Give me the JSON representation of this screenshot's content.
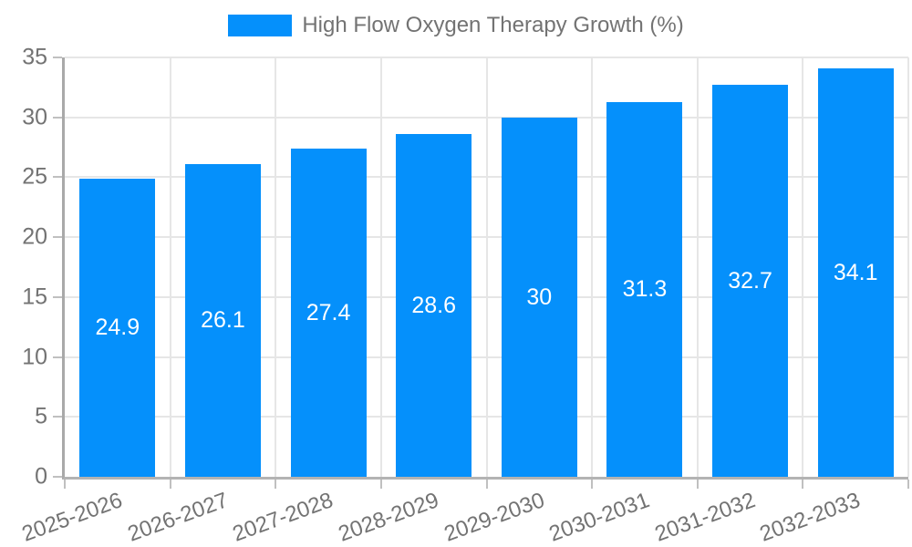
{
  "legend": {
    "label": "High Flow Oxygen Therapy Growth (%)"
  },
  "chart_data": {
    "type": "bar",
    "title": "High Flow Oxygen Therapy Growth (%)",
    "categories": [
      "2025-2026",
      "2026-2027",
      "2027-2028",
      "2028-2029",
      "2029-2030",
      "2030-2031",
      "2031-2032",
      "2032-2033"
    ],
    "values": [
      24.9,
      26.1,
      27.4,
      28.6,
      30,
      31.3,
      32.7,
      34.1
    ],
    "value_labels": [
      "24.9",
      "26.1",
      "27.4",
      "28.6",
      "30",
      "31.3",
      "32.7",
      "34.1"
    ],
    "xlabel": "",
    "ylabel": "",
    "ylim": [
      0,
      35
    ],
    "yticks": [
      0,
      5,
      10,
      15,
      20,
      25,
      30,
      35
    ],
    "grid": true,
    "legend_position": "top-center",
    "x_label_rotation_deg": -20,
    "bar_color": "#0590fb",
    "value_label_color": "#ffffff",
    "axis_text_color": "#737373",
    "grid_color": "#e6e6e6",
    "axis_line_color": "#a9a9a9",
    "tick_mark_color": "#c0c0c0",
    "background_color": "#ffffff"
  }
}
